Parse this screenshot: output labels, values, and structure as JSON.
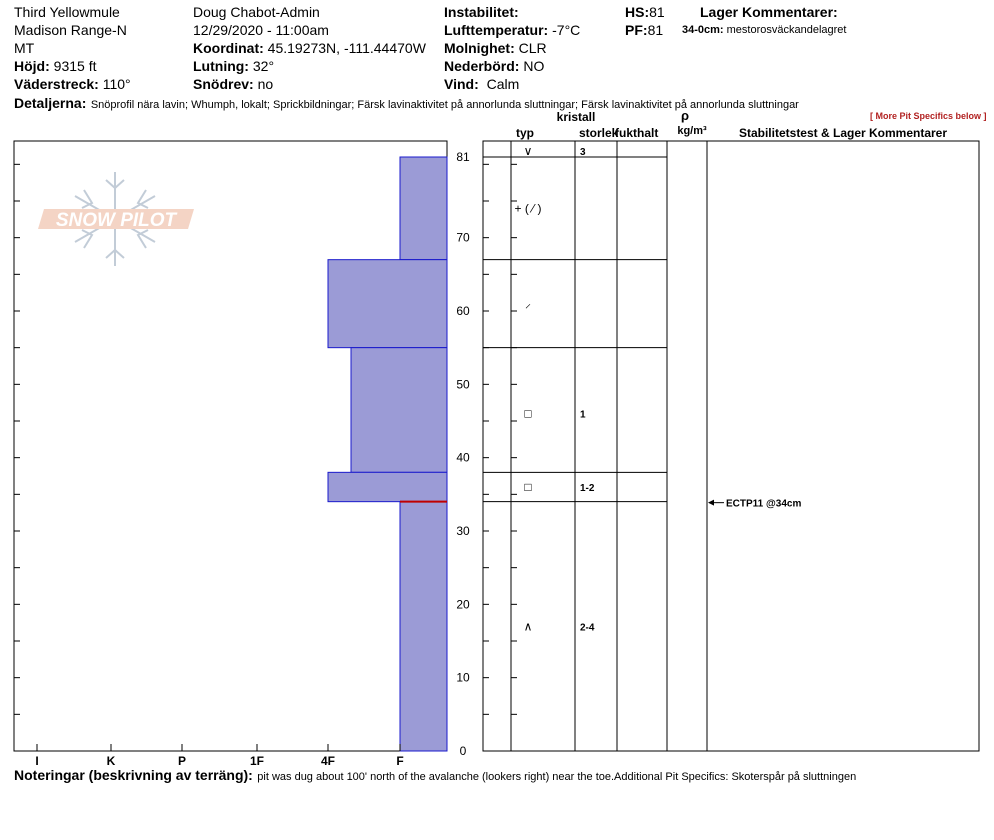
{
  "header": {
    "location": "Third Yellowmule",
    "range": "Madison Range-N",
    "state": "MT",
    "elevation_label": "Höjd:",
    "elevation_value": "9315 ft",
    "aspect_label": "Väderstreck:",
    "aspect_value": "110°",
    "observer": "Doug Chabot-Admin",
    "datetime": "12/29/2020 - 11:00am",
    "coord_label": "Koordinat:",
    "coord_value": "45.19273N, -111.44470W",
    "slope_label": "Lutning:",
    "slope_value": "32°",
    "wind_loading_label": "Snödrev:",
    "wind_loading_value": "no",
    "instability_label": "Instabilitet:",
    "air_temp_label": "Lufttemperatur:",
    "air_temp_value": "-7°C",
    "sky_label": "Molnighet:",
    "sky_value": "CLR",
    "precip_label": "Nederbörd:",
    "precip_value": "NO",
    "wind_label": "Vind:",
    "wind_value": "Calm",
    "hs_label": "HS:",
    "hs_value": "81",
    "pf_label": "PF:",
    "pf_value": "81",
    "layer_comments_label": "Lager Kommentarer:",
    "layer_comment_range": "34-0cm:",
    "layer_comment_text": "mestorosväckandelagret",
    "details_label": "Detaljerna:",
    "details_text": "Snöprofil nära lavin;  Whumph, lokalt;  Sprickbildningar;  Färsk lavinaktivitet på annorlunda sluttningar;  Färsk lavinaktivitet på annorlunda sluttningar",
    "more_specifics_link": "[ More Pit Specifics below ]"
  },
  "logo": {
    "text": "SNOW PILOT"
  },
  "table_headers": {
    "crystal": "kristall",
    "type": "typ",
    "size": "storlek",
    "moisture": "fukthalt",
    "rho": "ρ",
    "density_unit": "kg/m³",
    "stability": "Stabilitetstest & Lager Kommentarer"
  },
  "chart_data": {
    "type": "bar",
    "title": "",
    "xlabel": "",
    "ylabel": "",
    "hardness_scale": [
      "I",
      "K",
      "P",
      "1F",
      "4F",
      "F"
    ],
    "y_ticks": [
      "81",
      "70",
      "60",
      "50",
      "40",
      "30",
      "20",
      "10",
      "0"
    ],
    "ylim": [
      0,
      81
    ],
    "layers": [
      {
        "top": 81,
        "bottom": 67,
        "hardness": "F",
        "grain": "V",
        "size": "3"
      },
      {
        "top": 67,
        "bottom": 55,
        "hardness": "4F",
        "grain": "+(/)",
        "size": ""
      },
      {
        "top": 55,
        "bottom": 38,
        "hardness": "4F-",
        "grain": "/",
        "size": ""
      },
      {
        "top": 38,
        "bottom": 34,
        "hardness": "4F",
        "grain": "□",
        "size": "1"
      },
      {
        "top": 34,
        "bottom": 0,
        "hardness": "F",
        "grain": "□",
        "size": "1-2"
      }
    ],
    "grain_rows": [
      {
        "depth": 81,
        "symbol": "∨",
        "size": "3"
      },
      {
        "depth": 74,
        "symbol": "+ ( ⁄ )",
        "size": ""
      },
      {
        "depth": 61,
        "symbol": "⸝",
        "size": ""
      },
      {
        "depth": 46,
        "symbol": "□",
        "size": "1"
      },
      {
        "depth": 36,
        "symbol": "□",
        "size": "1-2"
      },
      {
        "depth": 17,
        "symbol": "∧",
        "size": "2-4"
      }
    ],
    "layer_boundaries": [
      81,
      67,
      55,
      38,
      34
    ],
    "failure_depth": 34,
    "test_result": "ECTP11 @34cm",
    "bar_color": "#9b9bd6"
  },
  "notes": {
    "label": "Noteringar (beskrivning av terräng):",
    "text": "pit was dug about 100' north of the avalanche (lookers right) near the toe.Additional Pit Specifics: Skoterspår på sluttningen"
  }
}
